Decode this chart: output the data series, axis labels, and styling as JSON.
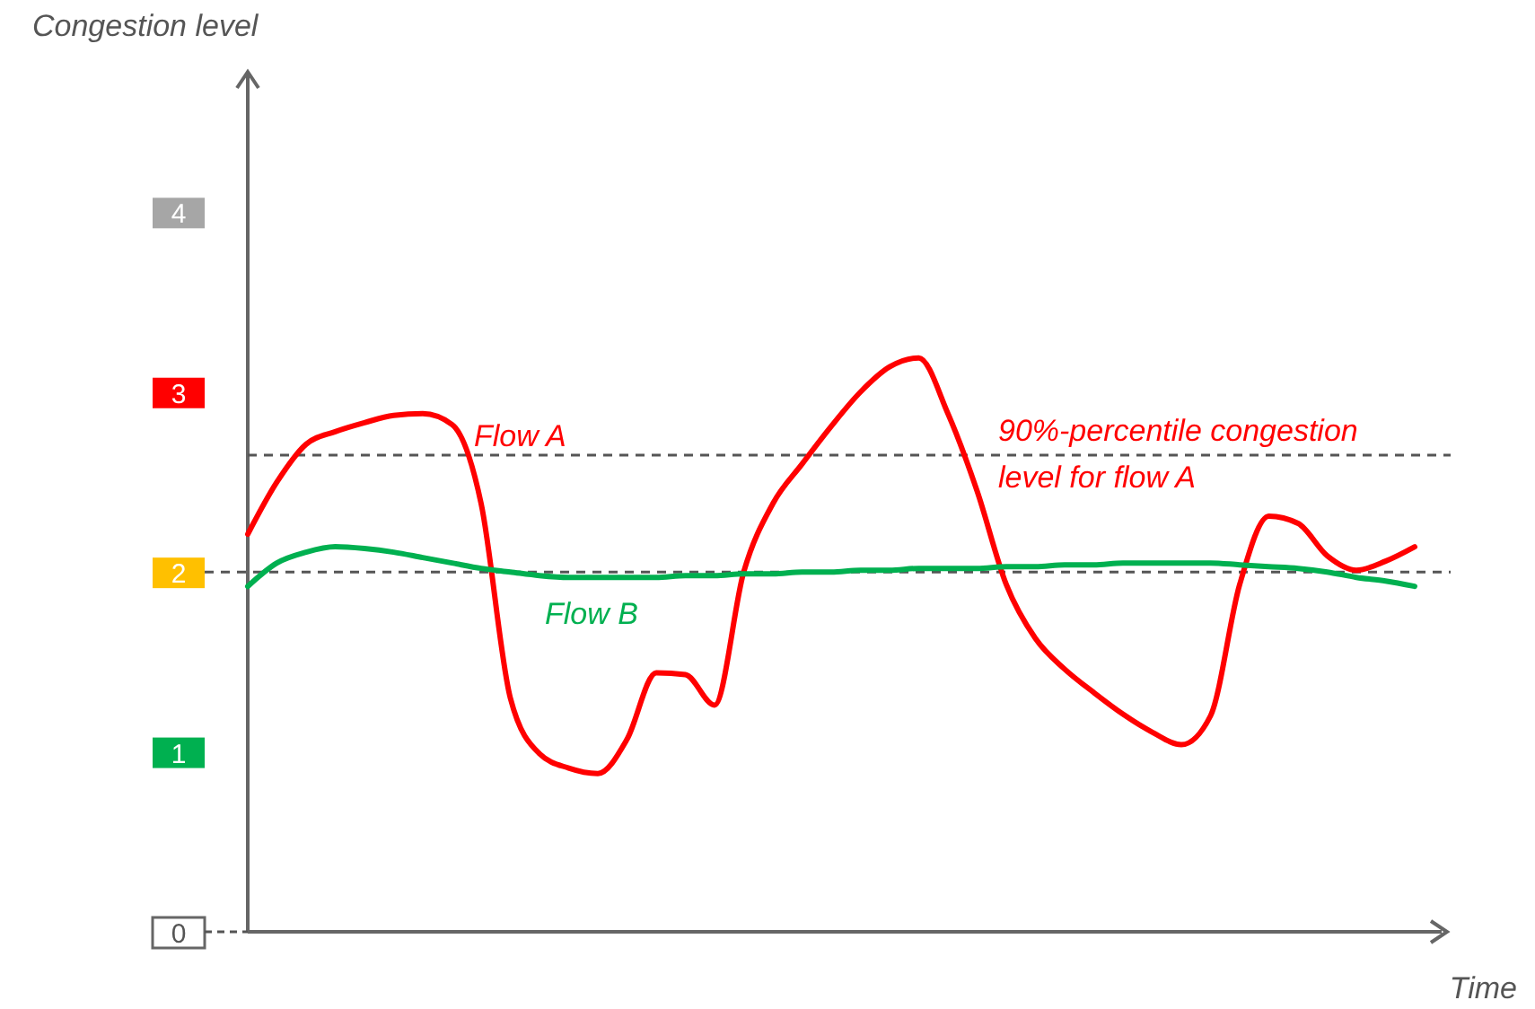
{
  "chart_data": {
    "type": "line",
    "ylabel": "Congestion level",
    "xlabel": "Time",
    "categories": [
      null,
      null,
      null,
      null,
      null,
      null,
      null,
      null,
      null,
      null,
      null,
      null,
      null,
      null,
      null,
      null,
      null,
      null,
      null,
      null,
      null,
      null,
      null,
      null,
      null,
      null,
      null,
      null,
      null,
      null,
      null,
      null,
      null,
      null,
      null,
      null,
      null,
      null,
      null,
      null,
      null
    ],
    "series": [
      {
        "name": "Flow A",
        "color": "#ff0000",
        "values": [
          2.21,
          2.5,
          2.71,
          2.78,
          2.83,
          2.87,
          2.88,
          2.82,
          2.38,
          1.3,
          0.99,
          0.91,
          0.88,
          1.07,
          1.44,
          1.43,
          1.26,
          2.0,
          2.38,
          2.6,
          2.81,
          3.0,
          3.14,
          3.19,
          2.88,
          2.45,
          1.93,
          1.63,
          1.46,
          1.33,
          1.21,
          1.11,
          1.04,
          1.2,
          1.93,
          2.31,
          2.27,
          2.09,
          2.01,
          2.06,
          2.14
        ]
      },
      {
        "name": "Flow B",
        "color": "#00b050",
        "values": [
          1.92,
          2.05,
          2.11,
          2.14,
          2.13,
          2.11,
          2.08,
          2.05,
          2.02,
          2.0,
          1.98,
          1.97,
          1.97,
          1.97,
          1.97,
          1.98,
          1.98,
          1.99,
          1.99,
          2.0,
          2.0,
          2.01,
          2.01,
          2.02,
          2.02,
          2.02,
          2.03,
          2.03,
          2.04,
          2.04,
          2.05,
          2.05,
          2.05,
          2.05,
          2.04,
          2.03,
          2.02,
          2.0,
          1.97,
          1.95,
          1.92
        ]
      }
    ],
    "ylim": [
      0,
      4.78
    ],
    "yticks": [
      0,
      1,
      2,
      3,
      4
    ],
    "ref_lines": [
      {
        "axis": "y",
        "value": 2.65,
        "label": "90%-percentile congestion level for flow A",
        "color": "#555555",
        "line_style": "dashed"
      },
      {
        "axis": "y",
        "value": 2,
        "color": "#555555",
        "line_style": "dashed"
      }
    ],
    "grid": false,
    "marker": "none",
    "line_style": "solid"
  }
}
